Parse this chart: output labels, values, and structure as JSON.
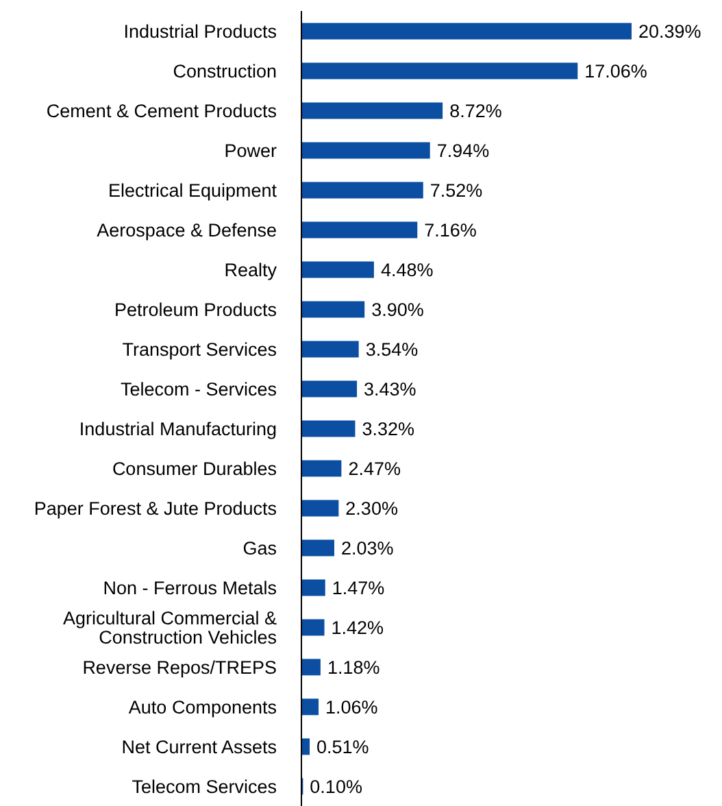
{
  "chart_data": {
    "type": "bar",
    "orientation": "horizontal",
    "categories": [
      "Industrial Products",
      "Construction",
      "Cement & Cement Products",
      "Power",
      "Electrical Equipment",
      "Aerospace & Defense",
      "Realty",
      "Petroleum Products",
      "Transport Services",
      "Telecom - Services",
      "Industrial Manufacturing",
      "Consumer Durables",
      "Paper Forest & Jute Products",
      "Gas",
      "Non - Ferrous Metals",
      "Agricultural Commercial & Construction Vehicles",
      "Reverse Repos/TREPS",
      "Auto Components",
      "Net Current Assets",
      "Telecom Services"
    ],
    "values": [
      20.39,
      17.06,
      8.72,
      7.94,
      7.52,
      7.16,
      4.48,
      3.9,
      3.54,
      3.43,
      3.32,
      2.47,
      2.3,
      2.03,
      1.47,
      1.42,
      1.18,
      1.06,
      0.51,
      0.1
    ],
    "value_labels": [
      "20.39%",
      "17.06%",
      "8.72%",
      "7.94%",
      "7.52%",
      "7.16%",
      "4.48%",
      "3.90%",
      "3.54%",
      "3.43%",
      "3.32%",
      "2.47%",
      "2.30%",
      "2.03%",
      "1.47%",
      "1.42%",
      "1.18%",
      "1.06%",
      "0.51%",
      "0.10%"
    ],
    "color": "#0b4ea2"
  }
}
